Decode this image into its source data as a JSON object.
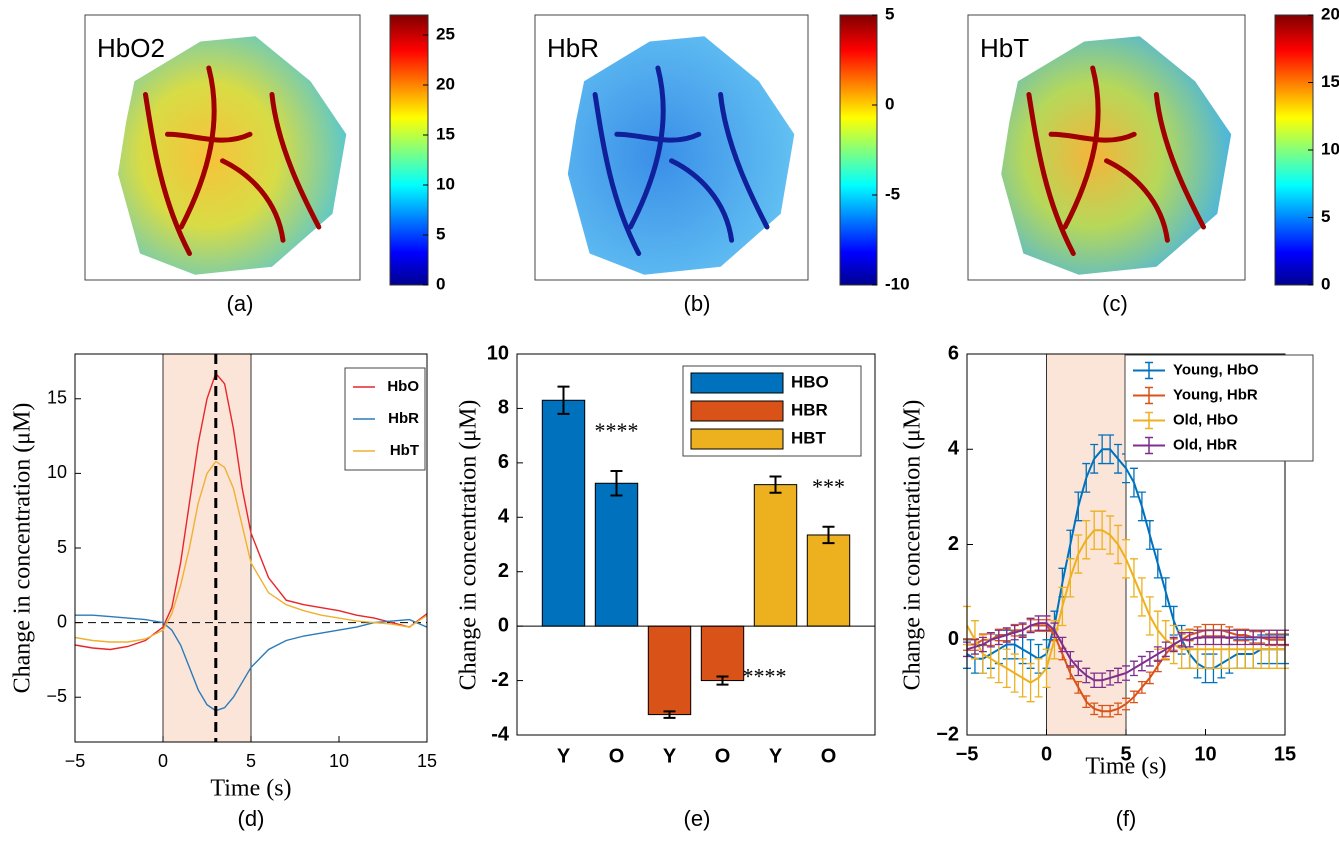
{
  "chart_data": [
    {
      "type": "image",
      "title": "HbO2",
      "caption": "(a)",
      "colormap": "jet",
      "clim": [
        0,
        27
      ],
      "cticks": [
        0,
        5,
        10,
        15,
        20,
        25
      ]
    },
    {
      "type": "image",
      "title": "HbR",
      "caption": "(b)",
      "colormap": "jet",
      "clim": [
        -10,
        5
      ],
      "cticks": [
        -10,
        -5,
        0,
        5
      ]
    },
    {
      "type": "image",
      "title": "HbT",
      "caption": "(c)",
      "colormap": "jet",
      "clim": [
        0,
        20
      ],
      "cticks": [
        0,
        5,
        10,
        15,
        20
      ]
    },
    {
      "type": "line",
      "caption": "(d)",
      "xlabel": "Time (s)",
      "ylabel": "Change in concentration (μM)",
      "x": [
        -5,
        -4,
        -3,
        -2,
        -1,
        0,
        0.5,
        1,
        1.5,
        2,
        2.5,
        3,
        3.5,
        4,
        4.5,
        5,
        6,
        7,
        8,
        9,
        10,
        11,
        12,
        13,
        14,
        15
      ],
      "series": [
        {
          "name": "HbO",
          "color": "#e8262a",
          "values": [
            -1.5,
            -1.7,
            -1.8,
            -1.6,
            -1.2,
            -0.3,
            1,
            4,
            8,
            12,
            15,
            16.7,
            16,
            13,
            9,
            6,
            3,
            1.5,
            1.2,
            1,
            0.8,
            0.5,
            0.3,
            0,
            -0.3,
            0.6
          ]
        },
        {
          "name": "HbR",
          "color": "#2b7bba",
          "values": [
            0.5,
            0.5,
            0.4,
            0.3,
            0.2,
            0,
            -0.5,
            -1.5,
            -3,
            -4.5,
            -5.5,
            -5.9,
            -5.7,
            -5,
            -4,
            -3,
            -1.8,
            -1.2,
            -0.9,
            -0.7,
            -0.5,
            -0.3,
            0,
            0.1,
            0.2,
            -0.3
          ]
        },
        {
          "name": "HbT",
          "color": "#f0b030",
          "values": [
            -1,
            -1.2,
            -1.3,
            -1.3,
            -1.1,
            -0.5,
            0.6,
            2.5,
            5,
            8,
            10,
            10.8,
            10.4,
            9,
            6.5,
            4,
            2,
            1.2,
            0.8,
            0.5,
            0.3,
            0.1,
            0,
            -0.1,
            -0.3,
            0.5
          ]
        }
      ],
      "xlim": [
        -5,
        15
      ],
      "xticks": [
        {
          "value": -5,
          "label": "−5"
        },
        0,
        5,
        10,
        15
      ],
      "ylim": [
        -8,
        18
      ],
      "yticks": [
        {
          "value": -5,
          "label": "−5"
        },
        0,
        5,
        10,
        15
      ],
      "shade": [
        0,
        5
      ],
      "vline": 3,
      "hline": 0,
      "legend": "upper right"
    },
    {
      "type": "bar",
      "caption": "(e)",
      "ylabel": "Change in concentration (μM)",
      "categories": [
        "Y",
        "O",
        "Y",
        "O",
        "Y",
        "O"
      ],
      "values": [
        8.3,
        5.25,
        -3.25,
        -2.0,
        5.2,
        3.35
      ],
      "errors": [
        0.5,
        0.45,
        0.12,
        0.15,
        0.3,
        0.3
      ],
      "colors": [
        "#0072bd",
        "#0072bd",
        "#d95319",
        "#d95319",
        "#edb120",
        "#edb120"
      ],
      "annotations": [
        null,
        "****",
        null,
        "****",
        null,
        "***"
      ],
      "legend_entries": [
        {
          "name": "HBO",
          "color": "#0072bd"
        },
        {
          "name": "HBR",
          "color": "#d95319"
        },
        {
          "name": "HBT",
          "color": "#edb120"
        }
      ],
      "ylim": [
        -4,
        10
      ],
      "yticks": [
        -4,
        -2,
        0,
        2,
        4,
        6,
        8,
        10
      ],
      "legend": "upper right"
    },
    {
      "type": "errorbar",
      "caption": "(f)",
      "xlabel": "Time (s)",
      "ylabel": "Change in concentration (μM)",
      "x": [
        -5,
        -4.5,
        -4,
        -3.5,
        -3,
        -2.5,
        -2,
        -1.5,
        -1,
        -0.5,
        0,
        0.5,
        1,
        1.5,
        2,
        2.5,
        3,
        3.5,
        4,
        4.5,
        5,
        5.5,
        6,
        6.5,
        7,
        7.5,
        8,
        8.5,
        9,
        9.5,
        10,
        10.5,
        11,
        11.5,
        12,
        12.5,
        13,
        13.5,
        14,
        14.5,
        15
      ],
      "series": [
        {
          "name": "Young, HbO",
          "color": "#0072bd",
          "error": 0.3,
          "values": [
            -0.3,
            -0.4,
            -0.4,
            -0.3,
            -0.2,
            -0.1,
            -0.1,
            -0.2,
            -0.3,
            -0.4,
            -0.3,
            0.3,
            1.2,
            2,
            2.8,
            3.4,
            3.8,
            4.0,
            4.0,
            3.8,
            3.6,
            3.3,
            2.8,
            2.2,
            1.6,
            1.0,
            0.4,
            0,
            -0.3,
            -0.5,
            -0.6,
            -0.6,
            -0.5,
            -0.4,
            -0.3,
            -0.3,
            -0.3,
            -0.2,
            -0.2,
            -0.2,
            -0.2
          ]
        },
        {
          "name": "Young, HbR",
          "color": "#d95319",
          "error": 0.12,
          "values": [
            -0.1,
            -0.1,
            0,
            0,
            0.1,
            0.1,
            0.2,
            0.2,
            0.3,
            0.3,
            0.3,
            0.1,
            -0.3,
            -0.7,
            -1.0,
            -1.3,
            -1.45,
            -1.5,
            -1.5,
            -1.45,
            -1.35,
            -1.2,
            -1.0,
            -0.8,
            -0.55,
            -0.3,
            -0.1,
            0,
            0.1,
            0.15,
            0.2,
            0.2,
            0.2,
            0.15,
            0.1,
            0.1,
            0.05,
            0.05,
            0,
            0,
            0
          ]
        },
        {
          "name": "Old, HbO",
          "color": "#edb120",
          "error": 0.4,
          "values": [
            0.3,
            0,
            -0.3,
            -0.4,
            -0.5,
            -0.6,
            -0.7,
            -0.8,
            -0.9,
            -0.8,
            -0.6,
            0,
            0.7,
            1.3,
            1.8,
            2.1,
            2.3,
            2.3,
            2.2,
            2.0,
            1.7,
            1.3,
            0.9,
            0.5,
            0.2,
            0,
            -0.1,
            -0.2,
            -0.2,
            -0.2,
            -0.2,
            -0.2,
            -0.2,
            -0.2,
            -0.2,
            -0.2,
            -0.2,
            -0.2,
            -0.2,
            -0.2,
            -0.2
          ]
        },
        {
          "name": "Old, HbR",
          "color": "#7e2f8e",
          "error": 0.15,
          "values": [
            -0.2,
            -0.15,
            -0.1,
            0,
            0.05,
            0.1,
            0.15,
            0.2,
            0.3,
            0.35,
            0.35,
            0.2,
            -0.1,
            -0.4,
            -0.6,
            -0.75,
            -0.85,
            -0.85,
            -0.8,
            -0.75,
            -0.7,
            -0.6,
            -0.5,
            -0.4,
            -0.3,
            -0.2,
            -0.1,
            0,
            0,
            0.05,
            0.05,
            0.05,
            0.05,
            0.05,
            0.05,
            0.05,
            0.05,
            0.05,
            0.05,
            0.05,
            0.05
          ]
        }
      ],
      "xlim": [
        -5,
        15
      ],
      "xticks": [
        {
          "value": -5,
          "label": "−5"
        },
        0,
        5,
        10,
        15
      ],
      "ylim": [
        -2,
        6
      ],
      "yticks": [
        {
          "value": -2,
          "label": "−2"
        },
        0,
        2,
        4,
        6
      ],
      "shade": [
        0,
        5
      ],
      "legend": "upper right"
    }
  ]
}
